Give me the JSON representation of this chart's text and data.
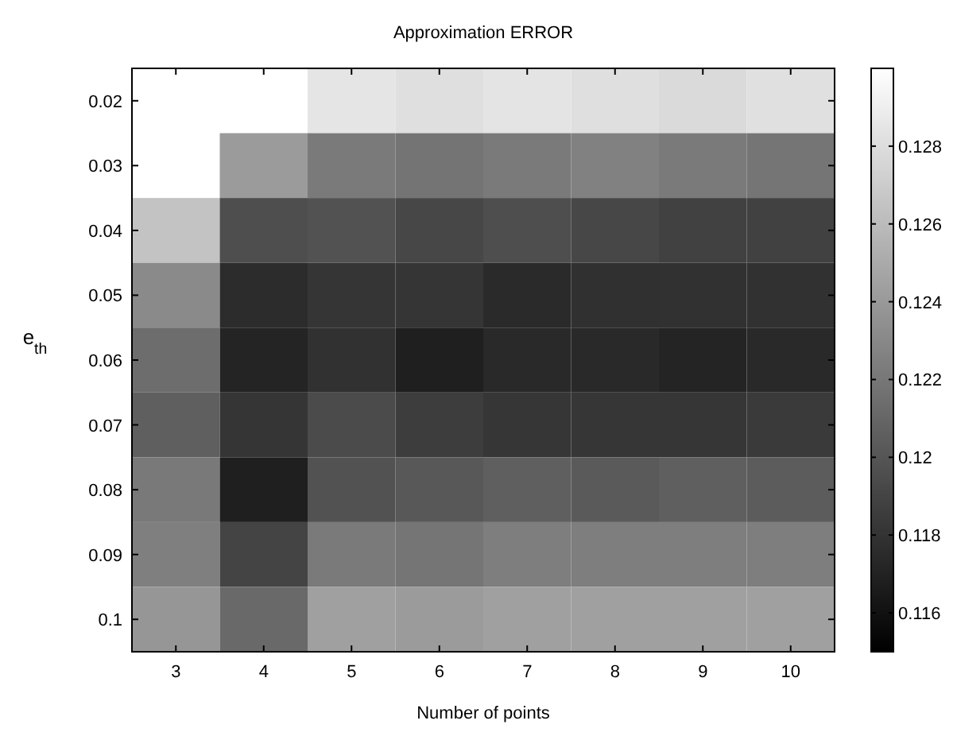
{
  "chart_data": {
    "type": "heatmap",
    "title": "Approximation ERROR",
    "xlabel": "Number of points",
    "ylabel": "e$_{th}$",
    "categories": [
      "3",
      "4",
      "5",
      "6",
      "7",
      "8",
      "9",
      "10"
    ],
    "y_categories": [
      "0.02",
      "0.03",
      "0.04",
      "0.05",
      "0.06",
      "0.07",
      "0.08",
      "0.09",
      "0.1"
    ],
    "cells": [
      [
        0.13,
        0.13,
        0.1285,
        0.1281,
        0.1284,
        0.1281,
        0.1278,
        0.1282
      ],
      [
        0.13,
        0.1241,
        0.1222,
        0.1218,
        0.1222,
        0.1226,
        0.1222,
        0.1219
      ],
      [
        0.1265,
        0.1196,
        0.1198,
        0.1192,
        0.1196,
        0.1192,
        0.1188,
        0.1188
      ],
      [
        0.1231,
        0.1176,
        0.1181,
        0.1181,
        0.1175,
        0.1178,
        0.1179,
        0.1179
      ],
      [
        0.1214,
        0.1171,
        0.1179,
        0.1168,
        0.1174,
        0.1174,
        0.1171,
        0.1174
      ],
      [
        0.1206,
        0.1181,
        0.1194,
        0.1186,
        0.1182,
        0.1182,
        0.1182,
        0.1184
      ],
      [
        0.1221,
        0.1168,
        0.1198,
        0.1202,
        0.1206,
        0.1203,
        0.1206,
        0.1204
      ],
      [
        0.1225,
        0.119,
        0.1222,
        0.1219,
        0.1224,
        0.1224,
        0.1224,
        0.1224
      ],
      [
        0.1238,
        0.1212,
        0.1244,
        0.1241,
        0.1244,
        0.1244,
        0.1244,
        0.1244
      ]
    ],
    "clim": [
      0.115,
      0.13
    ],
    "cticks": [
      0.116,
      0.118,
      {
        "value": 0.12,
        "label": "0.12"
      },
      0.122,
      0.124,
      0.126,
      0.128
    ]
  }
}
